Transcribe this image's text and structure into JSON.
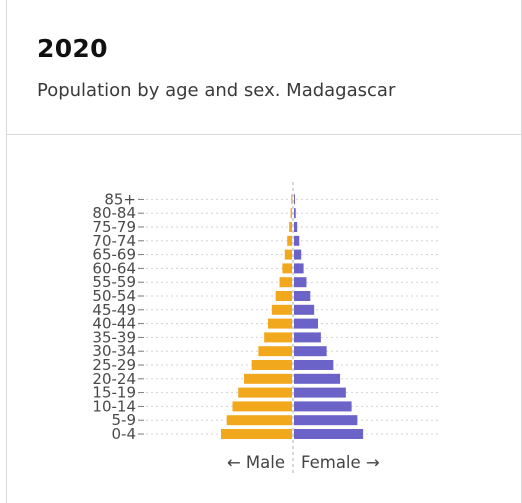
{
  "card": {
    "title": "2020",
    "subtitle": "Population by age and sex. Madagascar"
  },
  "chart_data": {
    "type": "bar",
    "orientation": "horizontal-pyramid",
    "title": "2020",
    "subtitle": "Population by age and sex. Madagascar",
    "categories": [
      "0-4",
      "5-9",
      "10-14",
      "15-19",
      "20-24",
      "25-29",
      "30-34",
      "35-39",
      "40-44",
      "45-49",
      "50-54",
      "55-59",
      "60-64",
      "65-69",
      "70-74",
      "75-79",
      "80-84",
      "85+"
    ],
    "series": [
      {
        "name": "Male",
        "color": "#f2a81d",
        "values": [
          7.4,
          6.8,
          6.2,
          5.6,
          5.0,
          4.2,
          3.5,
          2.9,
          2.5,
          2.1,
          1.7,
          1.3,
          1.0,
          0.75,
          0.5,
          0.3,
          0.15,
          0.07
        ]
      },
      {
        "name": "Female",
        "color": "#6b63c8",
        "values": [
          7.2,
          6.6,
          6.0,
          5.4,
          4.8,
          4.1,
          3.4,
          2.8,
          2.5,
          2.1,
          1.7,
          1.3,
          1.0,
          0.75,
          0.55,
          0.33,
          0.18,
          0.1
        ]
      }
    ],
    "xlabel_left": "← Male",
    "xlabel_right": "Female →",
    "grid": true,
    "legend": "none"
  }
}
